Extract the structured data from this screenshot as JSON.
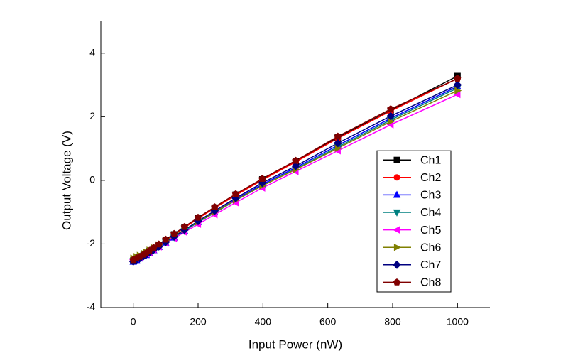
{
  "chart_data": {
    "type": "line",
    "x_label": "Input Power (nW)",
    "y_label": "Output Voltage (V)",
    "xlim": [
      -100,
      1100
    ],
    "ylim": [
      -4,
      5
    ],
    "xticks": [
      0,
      200,
      400,
      600,
      800,
      1000
    ],
    "yticks": [
      -4,
      -2,
      0,
      2,
      4
    ],
    "legend_position": "lower right",
    "x": [
      0,
      10,
      20,
      32,
      40,
      50,
      63,
      79,
      100,
      126,
      158,
      200,
      251,
      316,
      398,
      501,
      631,
      794,
      1000
    ],
    "series": [
      {
        "name": "Ch1",
        "color": "#000000",
        "marker": "square",
        "values": [
          -2.52,
          -2.47,
          -2.42,
          -2.35,
          -2.3,
          -2.23,
          -2.14,
          -2.03,
          -1.88,
          -1.7,
          -1.48,
          -1.19,
          -0.86,
          -0.45,
          0.03,
          0.6,
          1.35,
          2.2,
          3.28
        ]
      },
      {
        "name": "Ch2",
        "color": "#ff0000",
        "marker": "circle",
        "values": [
          -2.52,
          -2.47,
          -2.42,
          -2.35,
          -2.3,
          -2.23,
          -2.14,
          -2.03,
          -1.88,
          -1.7,
          -1.49,
          -1.2,
          -0.87,
          -0.47,
          0.01,
          0.58,
          1.32,
          2.18,
          3.2
        ]
      },
      {
        "name": "Ch3",
        "color": "#0000ff",
        "marker": "triangle-up",
        "values": [
          -2.56,
          -2.51,
          -2.46,
          -2.39,
          -2.35,
          -2.29,
          -2.2,
          -2.1,
          -1.96,
          -1.8,
          -1.59,
          -1.31,
          -1.0,
          -0.6,
          -0.13,
          0.4,
          1.1,
          1.95,
          2.95
        ]
      },
      {
        "name": "Ch4",
        "color": "#008080",
        "marker": "triangle-down",
        "values": [
          -2.53,
          -2.48,
          -2.43,
          -2.37,
          -2.32,
          -2.26,
          -2.18,
          -2.08,
          -1.95,
          -1.79,
          -1.59,
          -1.32,
          -1.02,
          -0.63,
          -0.17,
          0.36,
          1.05,
          1.9,
          2.9
        ]
      },
      {
        "name": "Ch5",
        "color": "#ff00ff",
        "marker": "triangle-left",
        "values": [
          -2.5,
          -2.46,
          -2.41,
          -2.35,
          -2.31,
          -2.26,
          -2.18,
          -2.09,
          -1.97,
          -1.82,
          -1.63,
          -1.38,
          -1.08,
          -0.7,
          -0.24,
          0.28,
          0.93,
          1.75,
          2.7
        ]
      },
      {
        "name": "Ch6",
        "color": "#808000",
        "marker": "triangle-right",
        "values": [
          -2.45,
          -2.4,
          -2.36,
          -2.3,
          -2.26,
          -2.2,
          -2.12,
          -2.03,
          -1.9,
          -1.74,
          -1.55,
          -1.3,
          -1.0,
          -0.62,
          -0.17,
          0.34,
          1.01,
          1.85,
          2.82
        ]
      },
      {
        "name": "Ch7",
        "color": "#000080",
        "marker": "diamond",
        "values": [
          -2.55,
          -2.5,
          -2.45,
          -2.38,
          -2.33,
          -2.27,
          -2.18,
          -2.08,
          -1.94,
          -1.77,
          -1.56,
          -1.28,
          -0.96,
          -0.56,
          -0.08,
          0.45,
          1.17,
          2.02,
          3.0
        ]
      },
      {
        "name": "Ch8",
        "color": "#800000",
        "marker": "pentagon",
        "values": [
          -2.5,
          -2.45,
          -2.4,
          -2.33,
          -2.28,
          -2.21,
          -2.12,
          -2.01,
          -1.86,
          -1.68,
          -1.46,
          -1.17,
          -0.84,
          -0.43,
          0.05,
          0.62,
          1.38,
          2.24,
          3.2
        ]
      }
    ]
  }
}
